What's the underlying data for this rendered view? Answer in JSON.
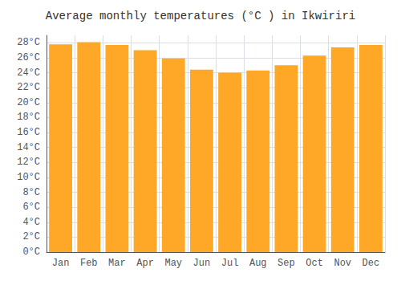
{
  "chart_data": {
    "type": "bar",
    "title": "Average monthly temperatures (°C ) in Ikwiriri",
    "categories": [
      "Jan",
      "Feb",
      "Mar",
      "Apr",
      "May",
      "Jun",
      "Jul",
      "Aug",
      "Sep",
      "Oct",
      "Nov",
      "Dec"
    ],
    "values": [
      27.8,
      28.1,
      27.7,
      27.0,
      25.9,
      24.4,
      24.0,
      24.3,
      25.0,
      26.3,
      27.4,
      27.7
    ],
    "color": "#FFA726",
    "ylim": [
      0,
      29
    ],
    "yticks": [
      {
        "value": 0,
        "label": "0°C"
      },
      {
        "value": 2,
        "label": "2°C"
      },
      {
        "value": 4,
        "label": "4°C"
      },
      {
        "value": 6,
        "label": "6°C"
      },
      {
        "value": 8,
        "label": "8°C"
      },
      {
        "value": 10,
        "label": "10°C"
      },
      {
        "value": 12,
        "label": "12°C"
      },
      {
        "value": 14,
        "label": "14°C"
      },
      {
        "value": 16,
        "label": "16°C"
      },
      {
        "value": 18,
        "label": "18°C"
      },
      {
        "value": 20,
        "label": "20°C"
      },
      {
        "value": 22,
        "label": "22°C"
      },
      {
        "value": 24,
        "label": "24°C"
      },
      {
        "value": 26,
        "label": "26°C"
      },
      {
        "value": 28,
        "label": "28°C"
      }
    ],
    "grid": true
  }
}
